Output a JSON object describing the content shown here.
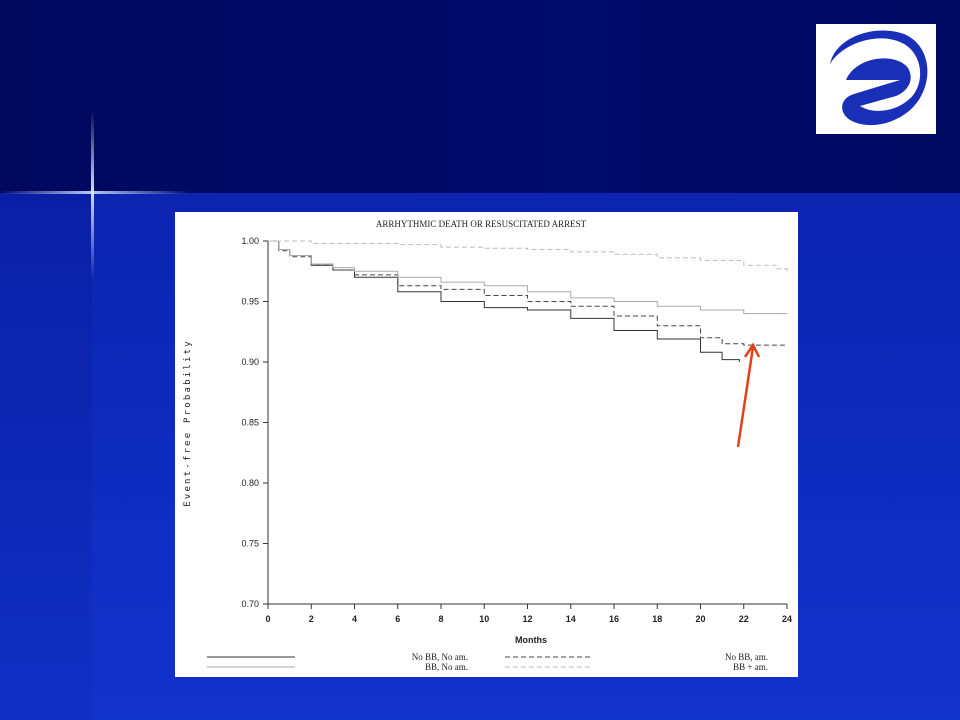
{
  "chart_data": {
    "type": "line",
    "title": "ARRHYTHMIC DEATH OR RESUSCITATED ARREST",
    "xlabel": "Months",
    "ylabel": "Event-free Probability",
    "xlim": [
      0,
      24
    ],
    "ylim": [
      0.7,
      1.0
    ],
    "x_ticks": [
      "0",
      "2",
      "4",
      "6",
      "8",
      "10",
      "12",
      "14",
      "16",
      "18",
      "20",
      "22",
      "24"
    ],
    "y_ticks": [
      "1.00",
      "0.95",
      "0.90",
      "0.85",
      "0.80",
      "0.75",
      "0.70"
    ],
    "grid": false,
    "legend_position": "bottom",
    "series": [
      {
        "name": "No BB, No am.",
        "color": "#333333",
        "dash": "solid",
        "x": [
          0,
          0.5,
          1,
          2,
          3,
          4,
          6,
          8,
          10,
          12,
          14,
          16,
          18,
          20,
          21,
          21.8
        ],
        "y": [
          1.0,
          0.993,
          0.988,
          0.98,
          0.976,
          0.97,
          0.958,
          0.95,
          0.945,
          0.943,
          0.936,
          0.926,
          0.919,
          0.908,
          0.902,
          0.9
        ]
      },
      {
        "name": "No BB, am.",
        "color": "#444444",
        "dash": "dashed",
        "x": [
          0,
          0.5,
          1,
          2,
          3,
          4,
          6,
          8,
          10,
          12,
          14,
          16,
          18,
          20,
          21,
          22,
          23,
          24
        ],
        "y": [
          1.0,
          0.992,
          0.987,
          0.98,
          0.976,
          0.972,
          0.963,
          0.96,
          0.955,
          0.95,
          0.946,
          0.938,
          0.93,
          0.92,
          0.915,
          0.914,
          0.914,
          0.914
        ]
      },
      {
        "name": "BB, No am.",
        "color": "#aaaaaa",
        "dash": "solid",
        "x": [
          0,
          0.5,
          1,
          2,
          3,
          4,
          6,
          8,
          10,
          12,
          14,
          16,
          18,
          20,
          22,
          24
        ],
        "y": [
          1.0,
          0.993,
          0.988,
          0.981,
          0.978,
          0.975,
          0.97,
          0.966,
          0.963,
          0.958,
          0.953,
          0.95,
          0.946,
          0.943,
          0.94,
          0.94
        ]
      },
      {
        "name": "BB + am.",
        "color": "#bbbbbb",
        "dash": "dashed",
        "x": [
          0,
          2,
          4,
          6,
          8,
          10,
          12,
          14,
          16,
          18,
          20,
          22,
          23.5,
          24
        ],
        "y": [
          1.0,
          0.998,
          0.998,
          0.997,
          0.995,
          0.994,
          0.993,
          0.991,
          0.989,
          0.986,
          0.984,
          0.98,
          0.977,
          0.973
        ]
      }
    ]
  },
  "legend": {
    "left_labels": [
      "No BB, No am.",
      "BB, No am."
    ],
    "right_labels": [
      "No BB, am.",
      "BB + am."
    ]
  },
  "colors": {
    "background": "#0d2ab8",
    "top_band": "#000a66",
    "annotation_arrow": "#e0401a",
    "logo": "#1a2fb8"
  },
  "icons": {
    "logo": "esc-swirl-logo",
    "arrow": "annotation-arrow"
  }
}
